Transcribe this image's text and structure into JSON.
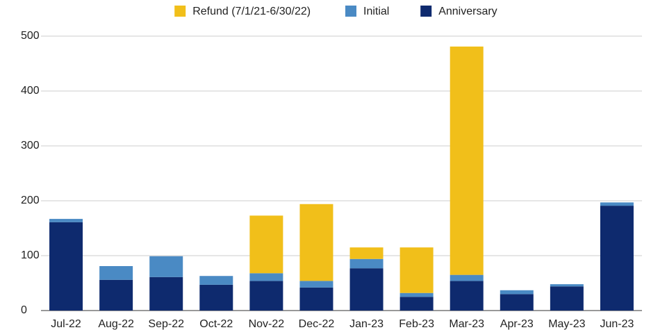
{
  "chart_data": {
    "type": "stacked_bar",
    "categories": [
      "Jul-22",
      "Aug-22",
      "Sep-22",
      "Oct-22",
      "Nov-22",
      "Dec-22",
      "Jan-23",
      "Feb-23",
      "Mar-23",
      "Apr-23",
      "May-23",
      "Jun-23"
    ],
    "series": [
      {
        "name": "Refund (7/1/21-6/30/22)",
        "color": "#f1bf1a",
        "values": [
          0,
          0,
          0,
          0,
          105,
          140,
          21,
          83,
          416,
          0,
          0,
          0
        ]
      },
      {
        "name": "Initial",
        "color": "#4a8ac4",
        "values": [
          6,
          25,
          38,
          16,
          14,
          12,
          17,
          7,
          11,
          7,
          4,
          6
        ]
      },
      {
        "name": "Anniversary",
        "color": "#0e2a6e",
        "values": [
          161,
          56,
          61,
          47,
          54,
          42,
          77,
          25,
          54,
          30,
          44,
          191
        ]
      }
    ],
    "ylim": [
      0,
      500
    ],
    "yticks": [
      0,
      100,
      200,
      300,
      400,
      500
    ],
    "grid": true,
    "legend": "top"
  }
}
